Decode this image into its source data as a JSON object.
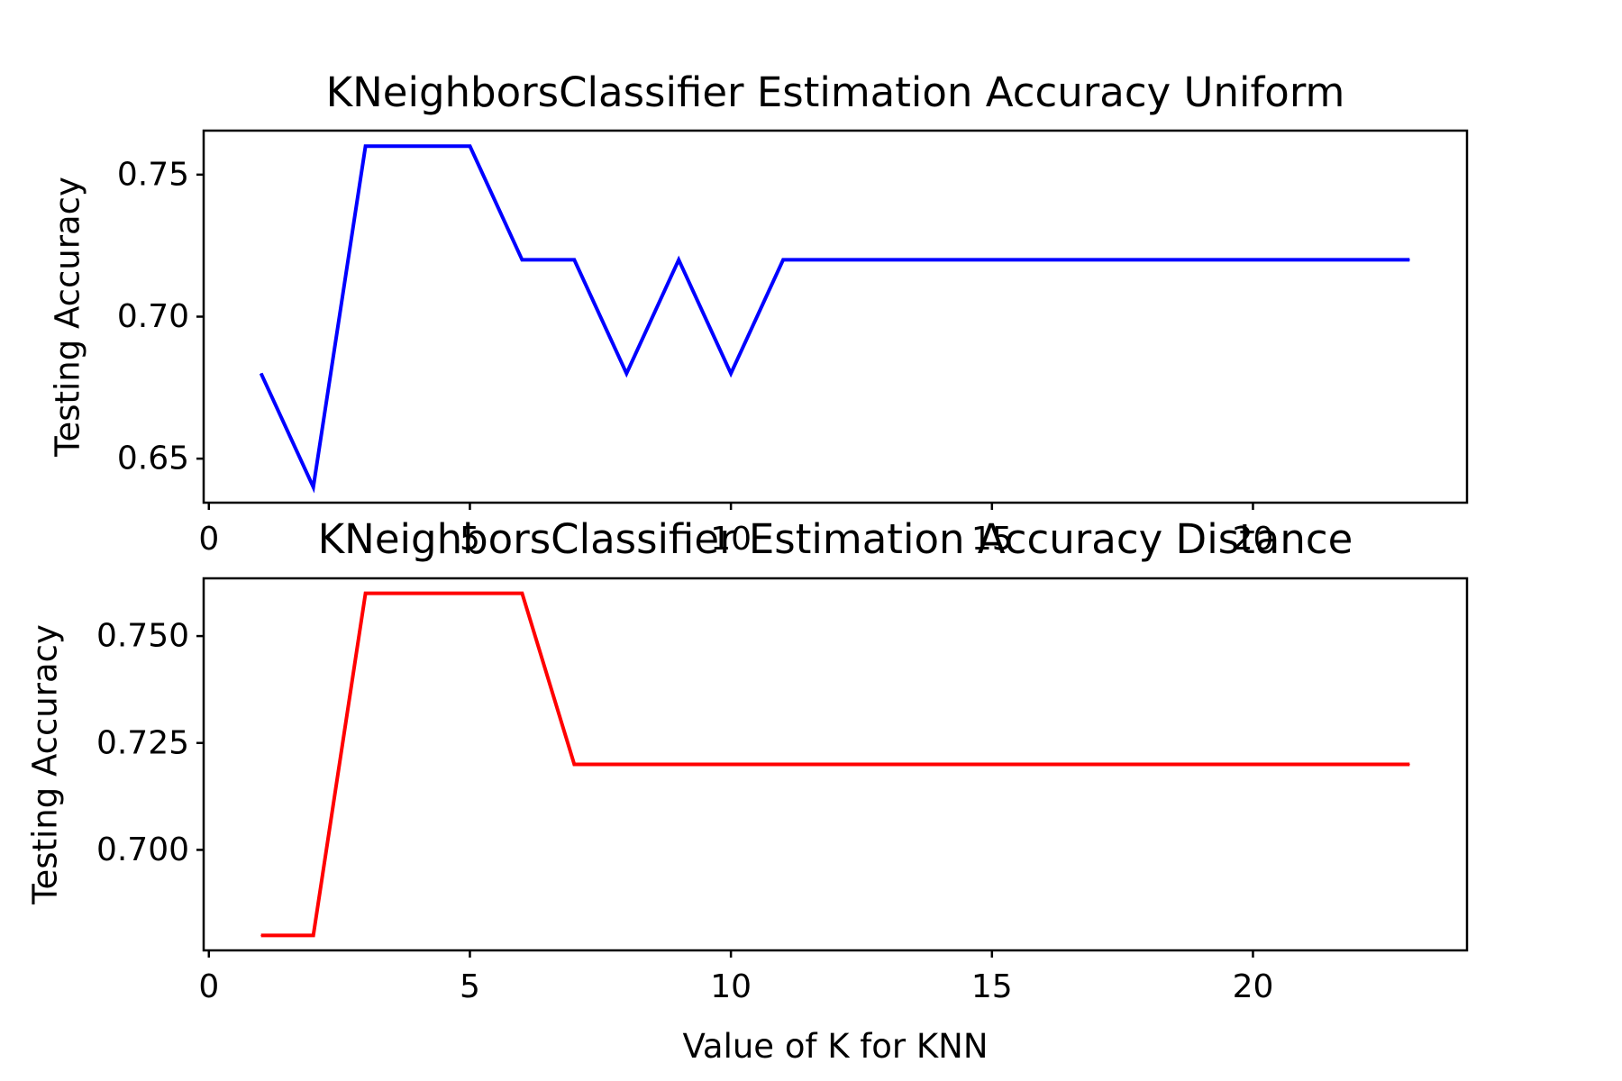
{
  "chart_data": [
    {
      "type": "line",
      "title": "KNeighborsClassifier Estimation Accuracy Uniform",
      "xlabel": "",
      "ylabel": "Testing Accuracy",
      "xlim": [
        -0.1,
        24.1
      ],
      "ylim": [
        0.6345,
        0.7655
      ],
      "xticks": [
        0,
        5,
        10,
        15,
        20
      ],
      "xtick_labels": [
        "0",
        "5",
        "10",
        "15",
        "20"
      ],
      "yticks": [
        0.65,
        0.7,
        0.75
      ],
      "ytick_labels": [
        "0.65",
        "0.70",
        "0.75"
      ],
      "grid": false,
      "color": "#0000ff",
      "series": [
        {
          "x": [
            1,
            2,
            3,
            4,
            5,
            6,
            7,
            8,
            9,
            10,
            11,
            12,
            13,
            14,
            15,
            16,
            17,
            18,
            19,
            20,
            21,
            22,
            23
          ],
          "values": [
            0.68,
            0.64,
            0.76,
            0.76,
            0.76,
            0.72,
            0.72,
            0.68,
            0.72,
            0.68,
            0.72,
            0.72,
            0.72,
            0.72,
            0.72,
            0.72,
            0.72,
            0.72,
            0.72,
            0.72,
            0.72,
            0.72,
            0.72
          ]
        }
      ]
    },
    {
      "type": "line",
      "title": "KNeighborsClassifier Estimation Accuracy Distance",
      "xlabel": "Value of K for KNN",
      "ylabel": "Testing Accuracy",
      "xlim": [
        -0.1,
        24.1
      ],
      "ylim": [
        0.6765,
        0.7635
      ],
      "xticks": [
        0,
        5,
        10,
        15,
        20
      ],
      "xtick_labels": [
        "0",
        "5",
        "10",
        "15",
        "20"
      ],
      "yticks": [
        0.7,
        0.725,
        0.75
      ],
      "ytick_labels": [
        "0.700",
        "0.725",
        "0.750"
      ],
      "grid": false,
      "color": "#ff0000",
      "series": [
        {
          "x": [
            1,
            2,
            3,
            4,
            5,
            6,
            7,
            8,
            9,
            10,
            11,
            12,
            13,
            14,
            15,
            16,
            17,
            18,
            19,
            20,
            21,
            22,
            23
          ],
          "values": [
            0.68,
            0.68,
            0.76,
            0.76,
            0.76,
            0.76,
            0.72,
            0.72,
            0.72,
            0.72,
            0.72,
            0.72,
            0.72,
            0.72,
            0.72,
            0.72,
            0.72,
            0.72,
            0.72,
            0.72,
            0.72,
            0.72,
            0.72
          ]
        }
      ]
    }
  ]
}
